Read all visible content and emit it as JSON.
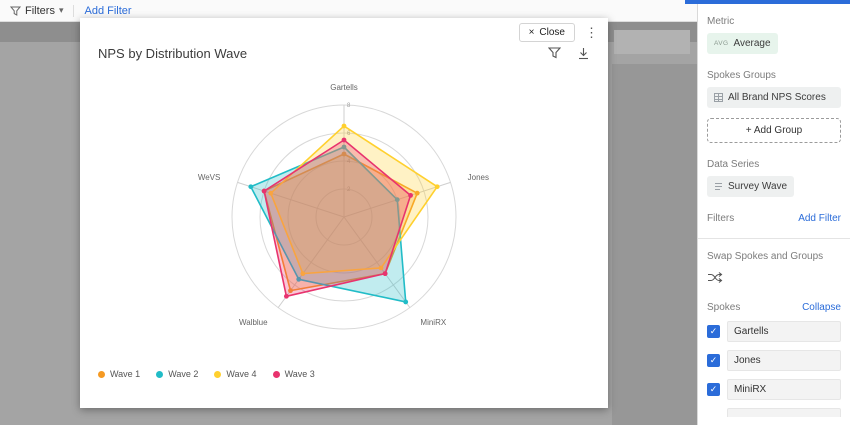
{
  "toolbar": {
    "filters_label": "Filters",
    "add_filter_label": "Add Filter"
  },
  "modal": {
    "title": "NPS by Distribution Wave",
    "close_label": "Close"
  },
  "chart_data": {
    "type": "radar",
    "title": "NPS by Distribution Wave",
    "categories": [
      "Gartells",
      "Jones",
      "MiniRX",
      "Walblue",
      "WeVS"
    ],
    "series": [
      {
        "name": "Wave 1",
        "color": "#F59A23",
        "values": [
          4.5,
          5.5,
          5,
          6.5,
          6
        ]
      },
      {
        "name": "Wave 2",
        "color": "#21BCC7",
        "values": [
          5,
          4,
          7.5,
          5.5,
          7
        ]
      },
      {
        "name": "Wave 4",
        "color": "#FFD02E",
        "values": [
          6.5,
          7,
          4.5,
          5,
          5.5
        ]
      },
      {
        "name": "Wave 3",
        "color": "#E8336E",
        "values": [
          5.5,
          5,
          5,
          7,
          6
        ]
      }
    ],
    "rmax": 8,
    "ticks": [
      0,
      2,
      4,
      6,
      8
    ],
    "grid": "circular",
    "legend_position": "bottom-left"
  },
  "sidebar": {
    "metric_label": "Metric",
    "metric_chip": {
      "prefix": "AVG",
      "label": "Average"
    },
    "spokes_groups_label": "Spokes Groups",
    "spokes_groups_chip": "All Brand NPS Scores",
    "add_group_label": "+ Add Group",
    "data_series_label": "Data Series",
    "data_series_chip": "Survey Wave",
    "filters_label": "Filters",
    "add_filter_label": "Add Filter",
    "swap_label": "Swap Spokes and Groups",
    "spokes_label": "Spokes",
    "collapse_label": "Collapse",
    "spokes": [
      {
        "label": "Gartells",
        "checked": true
      },
      {
        "label": "Jones",
        "checked": true
      },
      {
        "label": "MiniRX",
        "checked": true
      }
    ]
  },
  "colors": {
    "accent_blue": "#2b6cd9",
    "metric_chip_bg": "#e7f4ec"
  }
}
